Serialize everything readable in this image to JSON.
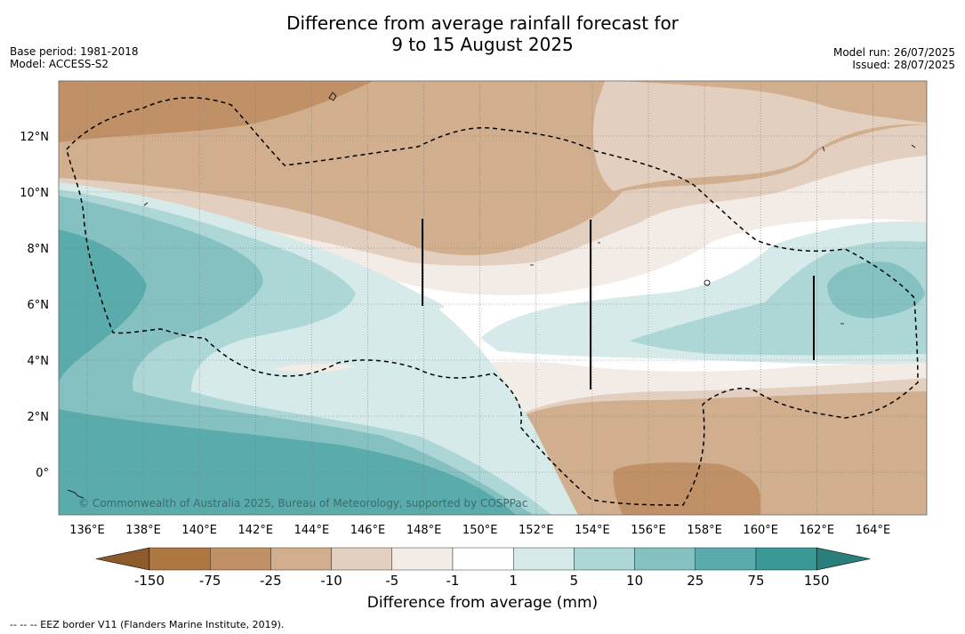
{
  "title": {
    "line1": "Difference from average rainfall forecast for",
    "line2": "9 to 15 August 2025"
  },
  "meta": {
    "base_period": "Base period: 1981-2018",
    "model": "Model: ACCESS-S2",
    "model_run": "Model run: 26/07/2025",
    "issued": "Issued: 28/07/2025"
  },
  "map": {
    "lon_ticks": [
      "136°E",
      "138°E",
      "140°E",
      "142°E",
      "144°E",
      "146°E",
      "148°E",
      "150°E",
      "152°E",
      "154°E",
      "156°E",
      "158°E",
      "160°E",
      "162°E",
      "164°E"
    ],
    "lat_ticks": [
      "12°N",
      "10°N",
      "8°N",
      "6°N",
      "4°N",
      "2°N",
      "0°"
    ],
    "copyright": "© Commonwealth of Australia 2025, Bureau of Meteorology, supported by COSPPac"
  },
  "colorbar": {
    "labels": [
      "-150",
      "-75",
      "-25",
      "-10",
      "-5",
      "-1",
      "1",
      "5",
      "10",
      "25",
      "75",
      "150"
    ],
    "colors": {
      "under": "#8c5a2b",
      "bins": [
        "#ad7842",
        "#c09167",
        "#d1ae8e",
        "#e3cfbf",
        "#f3ebe6",
        "#ffffff",
        "#d6eae9",
        "#add7d6",
        "#85c1c1",
        "#5aabab",
        "#3a9997"
      ],
      "over": "#2a7f7d"
    },
    "title": "Difference from average (mm)"
  },
  "footer": {
    "eez_note": "--  --  -- EEZ border V11 (Flanders Marine Institute, 2019)."
  }
}
